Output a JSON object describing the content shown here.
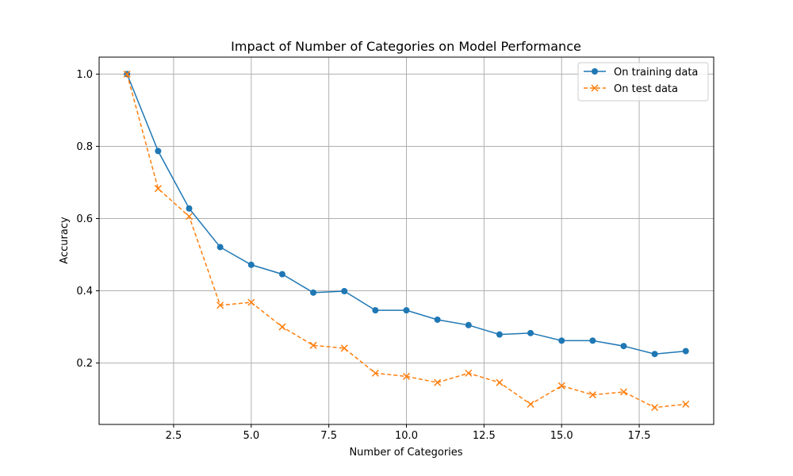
{
  "chart_data": {
    "type": "line",
    "title": "Impact of Number of Categories on Model Performance",
    "xlabel": "Number of Categories",
    "ylabel": "Accuracy",
    "xlim": [
      0.1,
      19.9
    ],
    "ylim": [
      0.03,
      1.047
    ],
    "xticks": [
      2.5,
      5.0,
      7.5,
      10.0,
      12.5,
      15.0,
      17.5
    ],
    "xtick_labels": [
      "2.5",
      "5.0",
      "7.5",
      "10.0",
      "12.5",
      "15.0",
      "17.5"
    ],
    "yticks": [
      0.2,
      0.4,
      0.6,
      0.8,
      1.0
    ],
    "ytick_labels": [
      "0.2",
      "0.4",
      "0.6",
      "0.8",
      "1.0"
    ],
    "grid": true,
    "legend_position": "top-right",
    "x": [
      1,
      2,
      3,
      4,
      5,
      6,
      7,
      8,
      9,
      10,
      11,
      12,
      13,
      14,
      15,
      16,
      17,
      18,
      19
    ],
    "series": [
      {
        "name": "On training data",
        "color": "#1f77b4",
        "marker": "circle",
        "linestyle": "solid",
        "values": [
          1.0,
          0.787,
          0.628,
          0.521,
          0.472,
          0.446,
          0.395,
          0.399,
          0.346,
          0.346,
          0.32,
          0.305,
          0.279,
          0.283,
          0.262,
          0.262,
          0.247,
          0.225,
          0.233
        ]
      },
      {
        "name": "On test data",
        "color": "#ff7f0e",
        "marker": "x",
        "linestyle": "dashed",
        "values": [
          1.0,
          0.683,
          0.606,
          0.36,
          0.368,
          0.3,
          0.249,
          0.241,
          0.172,
          0.163,
          0.146,
          0.172,
          0.146,
          0.086,
          0.137,
          0.112,
          0.12,
          0.077,
          0.086
        ]
      }
    ]
  }
}
